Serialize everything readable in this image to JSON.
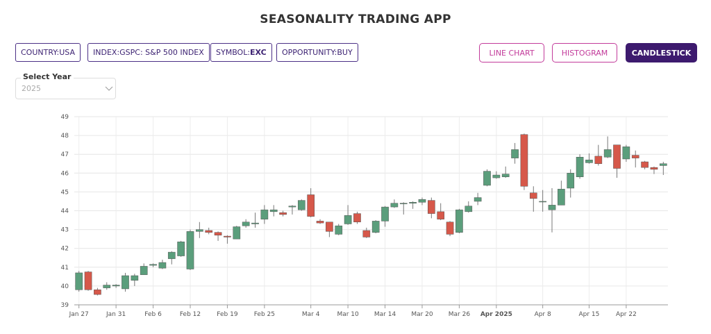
{
  "header": {
    "title": "SEASONALITY TRADING APP"
  },
  "filters": [
    {
      "label": "COUNTRY:",
      "value": "USA"
    },
    {
      "label": "INDEX:",
      "value": "GSPC: S&P 500 INDEX"
    },
    {
      "label": "SYMBOL:",
      "value": "EXC"
    },
    {
      "label": "OPPORTUNITY:",
      "value": "BUY"
    }
  ],
  "views": [
    "LINE CHART",
    "HISTOGRAM",
    "CANDLESTICK"
  ],
  "select": {
    "label": "Select Year",
    "value": "2025"
  },
  "chart_data": {
    "type": "candlestick",
    "up_color": "#5b9e7c",
    "down_color": "#d6584a",
    "grid": true,
    "x": [
      "Jan 27",
      "Jan 28",
      "Jan 29",
      "Jan 30",
      "Jan 31",
      "Feb 3",
      "Feb 4",
      "Feb 5",
      "Feb 6",
      "Feb 7",
      "Feb 10",
      "Feb 11",
      "Feb 12",
      "Feb 13",
      "Feb 14",
      "Feb 18",
      "Feb 19",
      "Feb 20",
      "Feb 21",
      "Feb 24",
      "Feb 25",
      "Feb 26",
      "Feb 27",
      "Feb 28",
      "Mar 3",
      "Mar 4",
      "Mar 5",
      "Mar 6",
      "Mar 7",
      "Mar 10",
      "Mar 11",
      "Mar 12",
      "Mar 13",
      "Mar 14",
      "Mar 17",
      "Mar 18",
      "Mar 19",
      "Mar 20",
      "Mar 21",
      "Mar 24",
      "Mar 25",
      "Mar 26",
      "Mar 27",
      "Mar 28",
      "Mar 31",
      "Apr 1",
      "Apr 2",
      "Apr 3",
      "Apr 4",
      "Apr 7",
      "Apr 8",
      "Apr 9",
      "Apr 10",
      "Apr 11",
      "Apr 14",
      "Apr 15",
      "Apr 16",
      "Apr 17",
      "Apr 21",
      "Apr 22",
      "Apr 23",
      "Apr 24",
      "Apr 25",
      "Apr 28"
    ],
    "open": [
      39.8,
      40.75,
      39.8,
      39.9,
      40.0,
      39.85,
      40.3,
      40.6,
      41.1,
      40.95,
      41.45,
      41.6,
      40.9,
      42.9,
      42.95,
      42.85,
      42.65,
      42.5,
      43.2,
      43.3,
      43.55,
      43.95,
      43.9,
      44.2,
      44.05,
      44.85,
      43.45,
      43.4,
      42.75,
      43.3,
      43.85,
      42.95,
      42.85,
      43.45,
      44.2,
      44.4,
      44.4,
      44.45,
      44.55,
      43.95,
      43.4,
      42.85,
      43.95,
      44.5,
      45.35,
      45.75,
      45.8,
      46.8,
      48.05,
      44.95,
      44.5,
      44.05,
      44.3,
      45.2,
      45.8,
      46.55,
      46.9,
      46.85,
      47.5,
      46.75,
      46.95,
      46.6,
      46.3,
      46.4
    ],
    "high": [
      40.8,
      40.8,
      39.9,
      40.2,
      40.1,
      40.7,
      40.65,
      41.2,
      41.2,
      41.4,
      41.85,
      42.4,
      43.0,
      43.4,
      43.1,
      42.9,
      42.7,
      43.2,
      43.55,
      43.9,
      44.3,
      44.3,
      44.0,
      44.3,
      44.6,
      45.2,
      43.55,
      43.4,
      43.3,
      44.3,
      43.95,
      43.1,
      43.5,
      44.25,
      44.6,
      44.45,
      44.5,
      44.7,
      44.7,
      44.4,
      43.45,
      44.1,
      44.5,
      44.95,
      46.2,
      46.1,
      46.35,
      47.6,
      48.1,
      45.3,
      45.1,
      45.2,
      45.6,
      46.2,
      47.0,
      47.05,
      47.5,
      47.95,
      47.5,
      47.5,
      47.2,
      46.65,
      46.35,
      46.6
    ],
    "low": [
      39.7,
      39.75,
      39.5,
      39.8,
      39.9,
      39.7,
      40.0,
      40.6,
      41.0,
      40.9,
      41.15,
      41.55,
      40.85,
      42.55,
      42.75,
      42.4,
      42.25,
      42.5,
      43.1,
      43.1,
      43.3,
      43.7,
      43.7,
      43.8,
      44.0,
      43.65,
      43.3,
      42.6,
      42.7,
      43.25,
      43.3,
      42.55,
      42.8,
      43.15,
      44.15,
      43.8,
      44.1,
      44.3,
      43.6,
      43.5,
      42.65,
      42.8,
      43.9,
      44.3,
      45.3,
      45.7,
      45.75,
      46.5,
      45.1,
      43.95,
      43.95,
      42.85,
      44.3,
      44.7,
      45.7,
      46.5,
      46.4,
      46.8,
      45.75,
      46.6,
      46.3,
      46.2,
      45.95,
      45.9
    ],
    "close": [
      40.7,
      39.8,
      39.55,
      40.05,
      40.05,
      40.55,
      40.55,
      41.05,
      41.15,
      41.25,
      41.8,
      42.35,
      42.9,
      43.0,
      42.85,
      42.7,
      42.6,
      43.15,
      43.4,
      43.35,
      44.05,
      44.05,
      43.8,
      44.25,
      44.55,
      43.7,
      43.35,
      42.9,
      43.2,
      43.75,
      43.4,
      42.6,
      43.45,
      44.2,
      44.4,
      44.4,
      44.45,
      44.6,
      43.85,
      43.55,
      42.75,
      44.05,
      44.25,
      44.7,
      46.1,
      45.9,
      45.95,
      47.25,
      45.3,
      44.65,
      44.5,
      44.3,
      45.15,
      46.0,
      46.85,
      46.7,
      46.5,
      47.25,
      46.25,
      47.4,
      46.8,
      46.3,
      46.2,
      46.5
    ],
    "ylim": [
      39,
      49
    ],
    "yticks": [
      39,
      40,
      41,
      42,
      43,
      44,
      45,
      46,
      47,
      48,
      49
    ],
    "xticks": [
      "Jan 27",
      "Jan 31",
      "Feb 6",
      "Feb 12",
      "Feb 19",
      "Feb 25",
      "Mar 4",
      "Mar 10",
      "Mar 14",
      "Mar 20",
      "Mar 26",
      {
        "value": "Apr 1",
        "label": "Apr 2025"
      },
      "Apr 8",
      "Apr 15",
      "Apr 22"
    ]
  }
}
